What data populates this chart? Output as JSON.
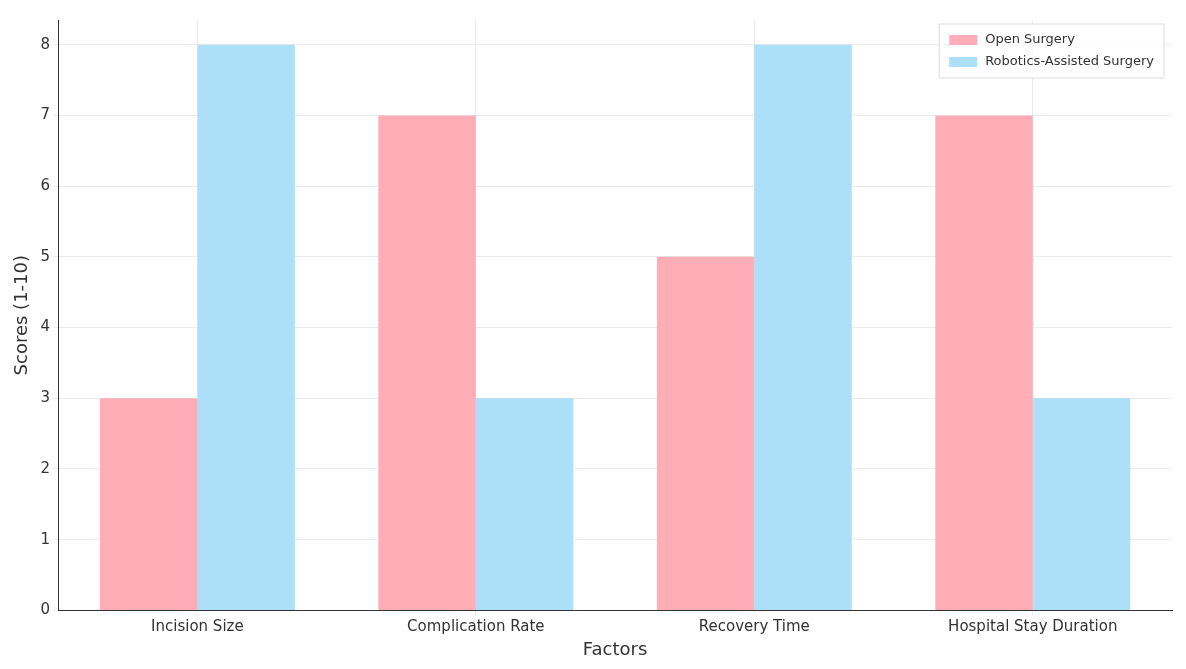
{
  "chart_data": {
    "type": "bar",
    "xlabel": "Factors",
    "ylabel": "Scores (1-10)",
    "categories": [
      "Incision Size",
      "Complication Rate",
      "Recovery Time",
      "Hospital Stay Duration"
    ],
    "series": [
      {
        "name": "Open Surgery",
        "color": "#ffadb7",
        "values": [
          3,
          7,
          5,
          7
        ]
      },
      {
        "name": "Robotics-Assisted Surgery",
        "color": "#addff8",
        "values": [
          8,
          3,
          8,
          3
        ]
      }
    ],
    "ylim": [
      0,
      8.35
    ],
    "yticks": [
      0,
      1,
      2,
      3,
      4,
      5,
      6,
      7,
      8
    ],
    "grid": true,
    "legend": "top right"
  }
}
